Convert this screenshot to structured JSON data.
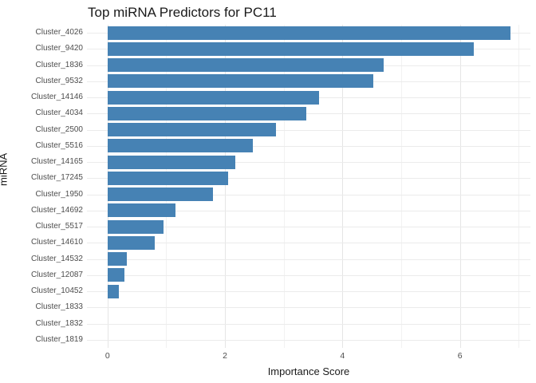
{
  "chart_data": {
    "type": "bar",
    "orientation": "horizontal",
    "title": "Top miRNA Predictors for PC11",
    "xlabel": "Importance Score",
    "ylabel": "miRNA",
    "categories": [
      "Cluster_4026",
      "Cluster_9420",
      "Cluster_1836",
      "Cluster_9532",
      "Cluster_14146",
      "Cluster_4034",
      "Cluster_2500",
      "Cluster_5516",
      "Cluster_14165",
      "Cluster_17245",
      "Cluster_1950",
      "Cluster_14692",
      "Cluster_5517",
      "Cluster_14610",
      "Cluster_14532",
      "Cluster_12087",
      "Cluster_10452",
      "Cluster_1833",
      "Cluster_1832",
      "Cluster_1819"
    ],
    "values": [
      6.86,
      6.23,
      4.7,
      4.53,
      3.6,
      3.39,
      2.87,
      2.48,
      2.18,
      2.06,
      1.79,
      1.16,
      0.95,
      0.81,
      0.33,
      0.29,
      0.19,
      0,
      0,
      0
    ],
    "x_major_ticks": [
      0,
      2,
      4,
      6
    ],
    "x_minor_ticks": [
      1,
      3,
      5,
      7
    ],
    "xlim": [
      -0.35,
      7.2
    ],
    "grid": true,
    "legend": false,
    "bar_color": "#4682b4"
  },
  "colors": {
    "bar": "#4682b4",
    "grid_major": "#e5e5e5",
    "grid_minor": "#f2f2f2",
    "tick_label": "#4d4d4d",
    "text": "#1a1a1a",
    "background": "#ffffff"
  }
}
